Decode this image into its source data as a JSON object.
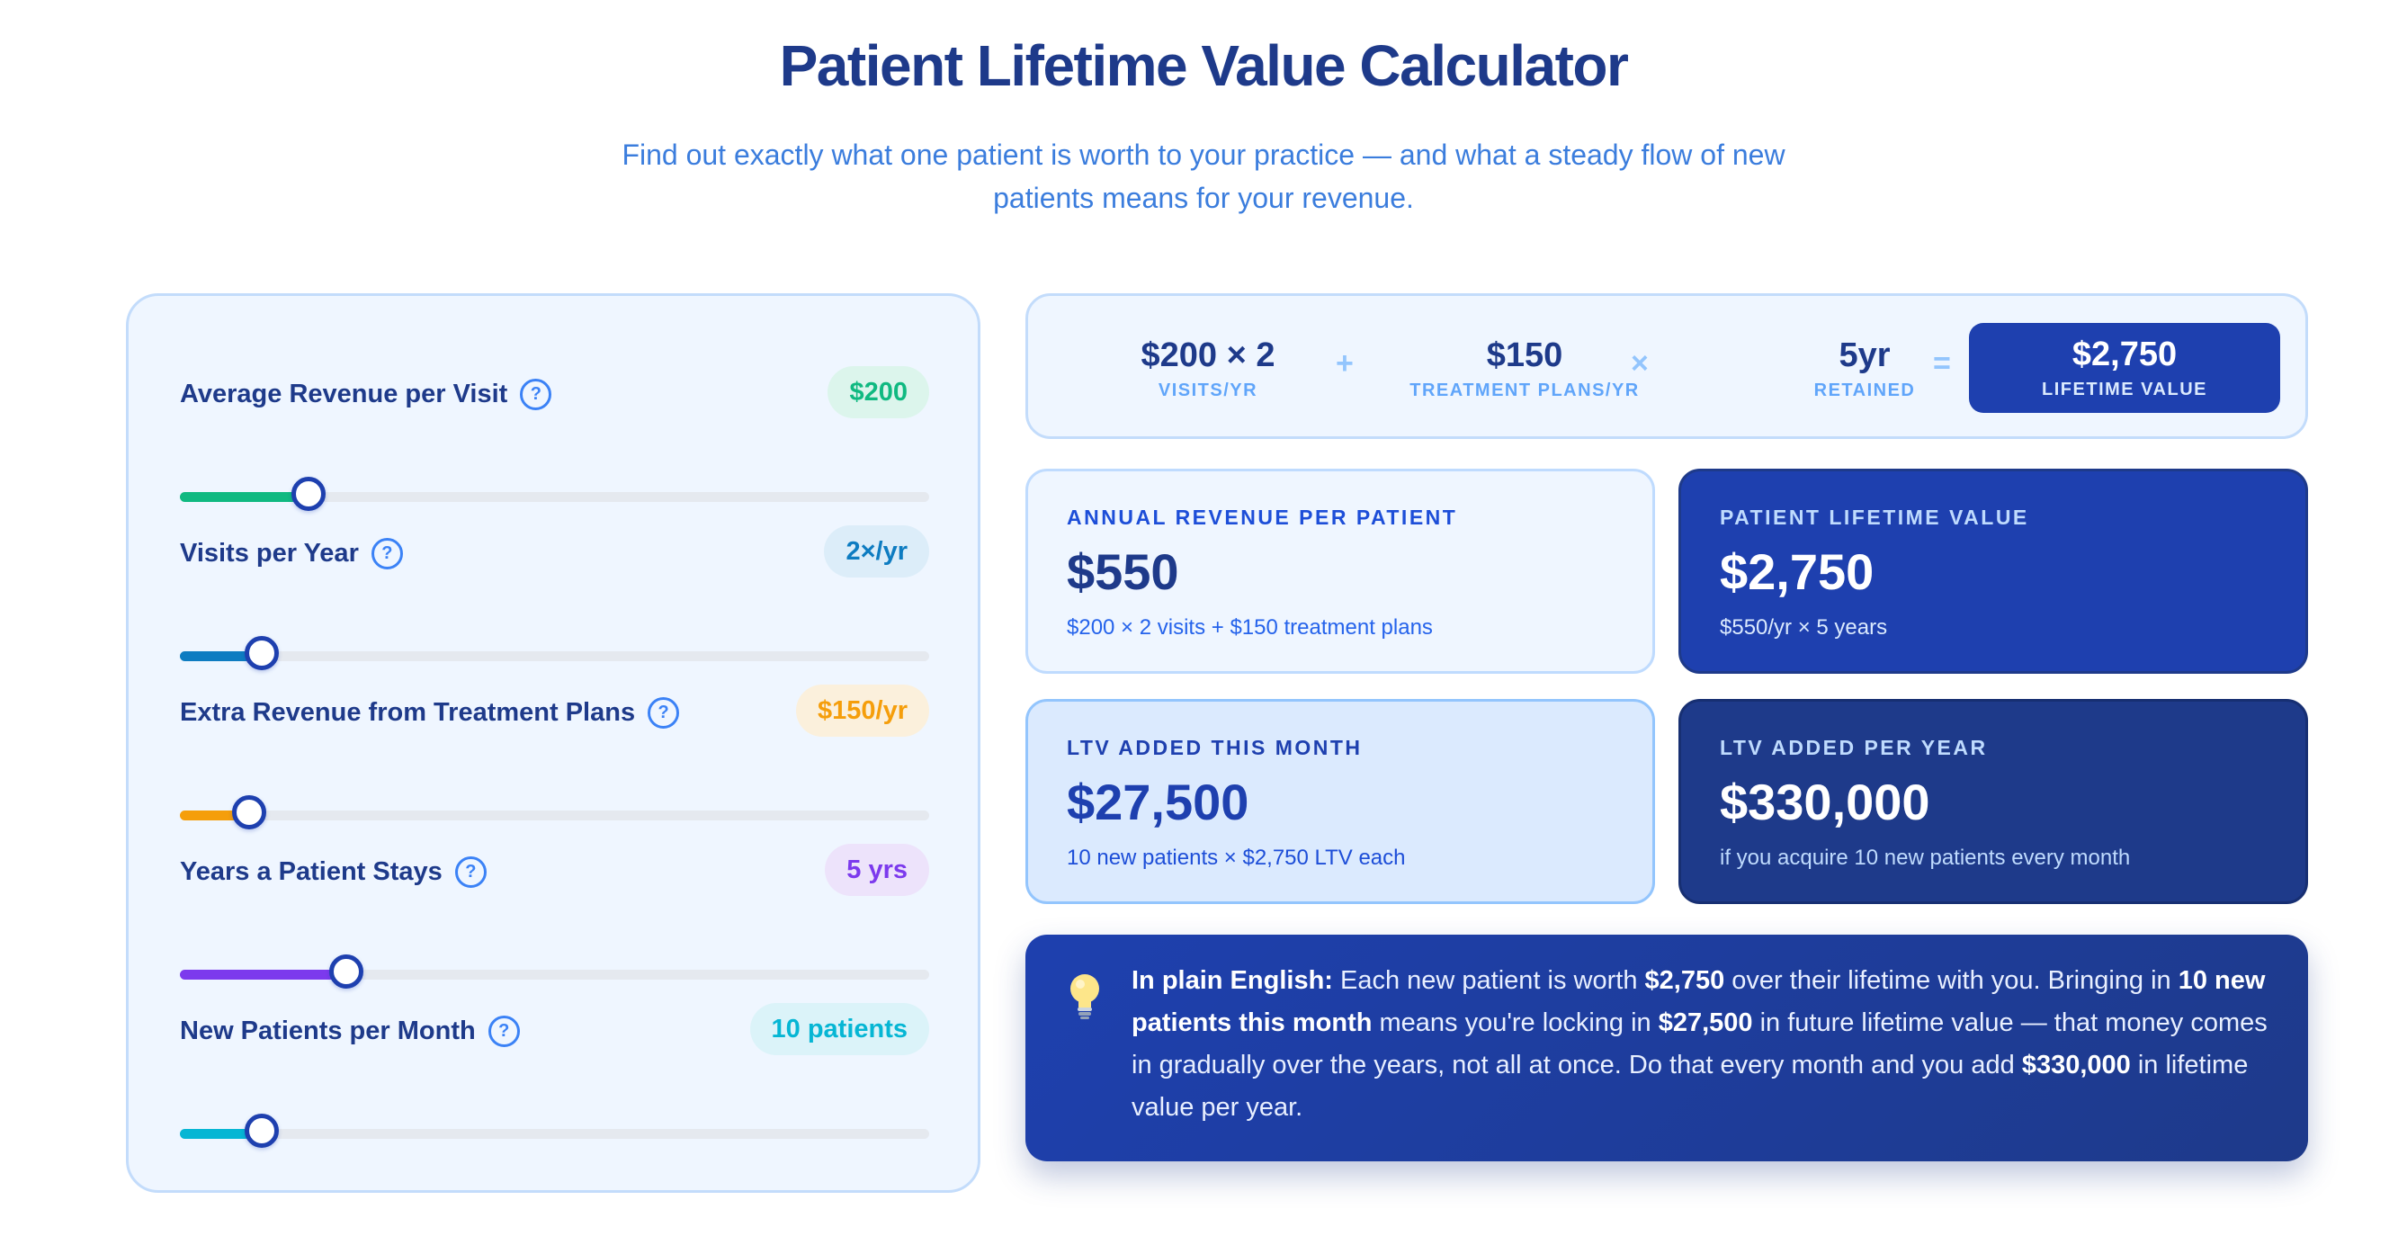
{
  "page": {
    "title": "Patient Lifetime Value Calculator",
    "subtitle": "Find out exactly what one patient is worth to your practice — and what a steady flow of new patients means for your revenue."
  },
  "controls": [
    {
      "label": "Average Revenue per Visit",
      "help": "?",
      "badge": "$200",
      "value_fraction": 0.172,
      "accent": "#10b981",
      "badge_bg": "#dcf5ec",
      "badge_color": "#10b981"
    },
    {
      "label": "Visits per Year",
      "help": "?",
      "badge": "2×/yr",
      "value_fraction": 0.109,
      "accent": "#0e7cc1",
      "badge_bg": "#dcedf9",
      "badge_color": "#0e7cc1"
    },
    {
      "label": "Extra Revenue from Treatment Plans",
      "help": "?",
      "badge": "$150/yr",
      "value_fraction": 0.093,
      "accent": "#f59e0b",
      "badge_bg": "#fbf0dc",
      "badge_color": "#f59e0b"
    },
    {
      "label": "Years a Patient Stays",
      "help": "?",
      "badge": "5 yrs",
      "value_fraction": 0.222,
      "accent": "#7c3aed",
      "badge_bg": "#ede3fb",
      "badge_color": "#7c3aed"
    },
    {
      "label": "New Patients per Month",
      "help": "?",
      "badge": "10 patients",
      "value_fraction": 0.109,
      "accent": "#06b6d4",
      "badge_bg": "#dbf3f9",
      "badge_color": "#06b6d4"
    }
  ],
  "formula": {
    "terms": [
      {
        "value": "$200 × 2",
        "label": "VISITS/YR"
      },
      {
        "value": "$150",
        "label": "TREATMENT PLANS/YR"
      },
      {
        "value": "5yr",
        "label": "RETAINED"
      }
    ],
    "operators": [
      "+",
      "×",
      "="
    ],
    "result": {
      "value": "$2,750",
      "label": "LIFETIME VALUE"
    }
  },
  "cards": {
    "annual": {
      "label": "ANNUAL REVENUE PER PATIENT",
      "value": "$550",
      "sub": "$200 × 2 visits + $150 treatment plans"
    },
    "lifetime": {
      "label": "PATIENT LIFETIME VALUE",
      "value": "$2,750",
      "sub": "$550/yr × 5 years"
    },
    "month": {
      "label": "LTV ADDED THIS MONTH",
      "value": "$27,500",
      "sub": "10 new patients × $2,750 LTV each"
    },
    "year": {
      "label": "LTV ADDED PER YEAR",
      "value": "$330,000",
      "sub": "if you acquire 10 new patients every month"
    }
  },
  "plain": {
    "lead": "In plain English:",
    "t1": " Each new patient is worth ",
    "b1": "$2,750",
    "t2": " over their lifetime with you. Bringing in ",
    "b2": "10 new patients this month",
    "t3": " means you're locking in ",
    "b3": "$27,500",
    "t4": " in future lifetime value — that money comes in gradually over the years, not all at once. Do that every month and you add ",
    "b4": "$330,000",
    "t5": " in lifetime value per year.",
    "icon": "lightbulb-icon"
  }
}
